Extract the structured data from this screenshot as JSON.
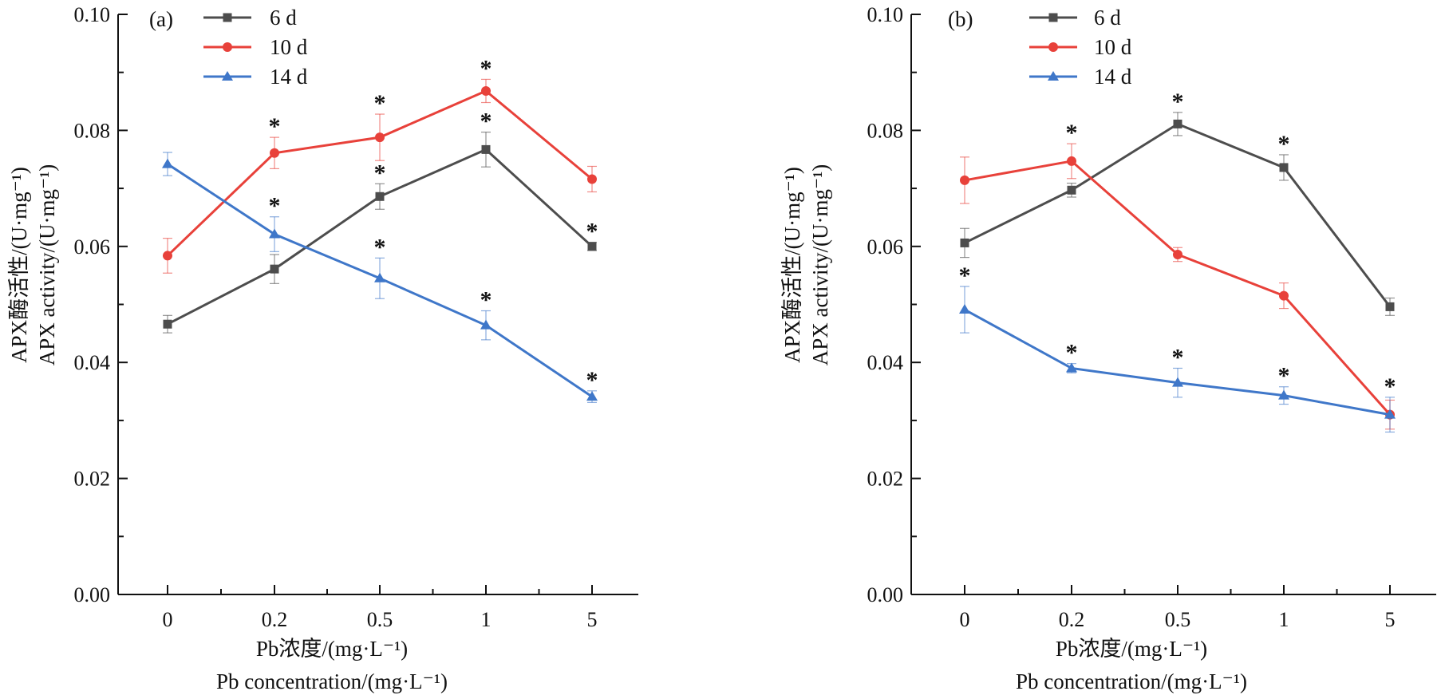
{
  "chart_data": [
    {
      "type": "line",
      "panel_label": "(a)",
      "categories": [
        "0",
        "0.2",
        "0.5",
        "1",
        "5"
      ],
      "ylim": [
        0,
        0.1
      ],
      "y_ticks": [
        "0.00",
        "0.02",
        "0.04",
        "0.06",
        "0.08",
        "0.10"
      ],
      "ylabel_lines": [
        "APX酶活性/(U·mg⁻¹)",
        "APX activity/(U·mg⁻¹)"
      ],
      "xlabel_lines": [
        "Pb浓度/(mg·L⁻¹)",
        "Pb concentration/(mg·L⁻¹)"
      ],
      "legend_position": "top-left",
      "grid": false,
      "series": [
        {
          "name": "6 d",
          "color": "#4d4d4d",
          "marker": "square",
          "values": [
            0.0466,
            0.0561,
            0.0686,
            0.0767,
            0.06
          ],
          "errors": [
            0.0015,
            0.0025,
            0.0022,
            0.003,
            0.0007
          ],
          "significant": [
            false,
            false,
            true,
            true,
            true
          ]
        },
        {
          "name": "10 d",
          "color": "#e8413a",
          "marker": "circle",
          "values": [
            0.0584,
            0.0761,
            0.0788,
            0.0868,
            0.0716
          ],
          "errors": [
            0.003,
            0.0027,
            0.004,
            0.002,
            0.0022
          ],
          "significant": [
            false,
            true,
            true,
            true,
            false
          ]
        },
        {
          "name": "14 d",
          "color": "#3f77c9",
          "marker": "triangle",
          "values": [
            0.0742,
            0.0621,
            0.0545,
            0.0464,
            0.0341
          ],
          "errors": [
            0.002,
            0.003,
            0.0035,
            0.0025,
            0.001
          ],
          "significant": [
            false,
            true,
            true,
            true,
            true
          ]
        }
      ],
      "annotation_symbol": "*"
    },
    {
      "type": "line",
      "panel_label": "(b)",
      "categories": [
        "0",
        "0.2",
        "0.5",
        "1",
        "5"
      ],
      "ylim": [
        0,
        0.1
      ],
      "y_ticks": [
        "0.00",
        "0.02",
        "0.04",
        "0.06",
        "0.08",
        "0.10"
      ],
      "ylabel_lines": [
        "APX酶活性/(U·mg⁻¹)",
        "APX activity/(U·mg⁻¹)"
      ],
      "xlabel_lines": [
        "Pb浓度/(mg·L⁻¹)",
        "Pb concentration/(mg·L⁻¹)"
      ],
      "legend_position": "top-left",
      "grid": false,
      "series": [
        {
          "name": "6 d",
          "color": "#4d4d4d",
          "marker": "square",
          "values": [
            0.0606,
            0.0697,
            0.0811,
            0.0736,
            0.0496
          ],
          "errors": [
            0.0025,
            0.0012,
            0.002,
            0.0022,
            0.0015
          ],
          "significant": [
            false,
            false,
            true,
            true,
            false
          ]
        },
        {
          "name": "10 d",
          "color": "#e8413a",
          "marker": "circle",
          "values": [
            0.0714,
            0.0747,
            0.0586,
            0.0515,
            0.031
          ],
          "errors": [
            0.004,
            0.003,
            0.0012,
            0.0022,
            0.0025
          ],
          "significant": [
            false,
            true,
            false,
            false,
            false
          ]
        },
        {
          "name": "14 d",
          "color": "#3f77c9",
          "marker": "triangle",
          "values": [
            0.0491,
            0.039,
            0.0365,
            0.0343,
            0.031
          ],
          "errors": [
            0.004,
            0.0008,
            0.0025,
            0.0015,
            0.003
          ],
          "significant": [
            true,
            true,
            true,
            true,
            true
          ]
        }
      ],
      "annotation_symbol": "*"
    }
  ]
}
